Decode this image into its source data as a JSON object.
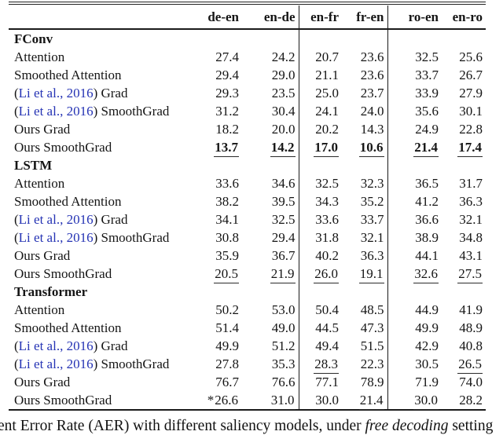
{
  "colors": {
    "citation_blue": "#2533b4",
    "text": "#151515",
    "rule": "#222222",
    "background": "#ffffff"
  },
  "table": {
    "columns": [
      "de-en",
      "en-de",
      "en-fr",
      "fr-en",
      "ro-en",
      "en-ro"
    ],
    "sections": [
      {
        "title": "FConv",
        "rows": [
          {
            "label": [
              {
                "t": "Attention"
              }
            ],
            "cells": [
              {
                "t": "27.4"
              },
              {
                "t": "24.2"
              },
              {
                "t": "20.7"
              },
              {
                "t": "23.6"
              },
              {
                "t": "32.5"
              },
              {
                "t": "25.6"
              }
            ]
          },
          {
            "label": [
              {
                "t": "Smoothed Attention"
              }
            ],
            "cells": [
              {
                "t": "29.4"
              },
              {
                "t": "29.0"
              },
              {
                "t": "21.1"
              },
              {
                "t": "23.6"
              },
              {
                "t": "33.7"
              },
              {
                "t": "26.7"
              }
            ]
          },
          {
            "label": [
              {
                "t": "("
              },
              {
                "t": "Li et al., 2016",
                "cite": true
              },
              {
                "t": ") Grad"
              }
            ],
            "cells": [
              {
                "t": "29.3"
              },
              {
                "t": "23.5"
              },
              {
                "t": "25.0"
              },
              {
                "t": "23.7"
              },
              {
                "t": "33.9"
              },
              {
                "t": "27.9"
              }
            ]
          },
          {
            "label": [
              {
                "t": "("
              },
              {
                "t": "Li et al., 2016",
                "cite": true
              },
              {
                "t": ") SmoothGrad"
              }
            ],
            "cells": [
              {
                "t": "31.2"
              },
              {
                "t": "30.4"
              },
              {
                "t": "24.1"
              },
              {
                "t": "24.0"
              },
              {
                "t": "35.6"
              },
              {
                "t": "30.1"
              }
            ]
          },
          {
            "label": [
              {
                "t": "Ours Grad"
              }
            ],
            "cells": [
              {
                "t": "18.2"
              },
              {
                "t": "20.0"
              },
              {
                "t": "20.2"
              },
              {
                "t": "14.3"
              },
              {
                "t": "24.9"
              },
              {
                "t": "22.8"
              }
            ]
          },
          {
            "label": [
              {
                "t": "Ours SmoothGrad"
              }
            ],
            "cells": [
              {
                "t": "13.7",
                "u": true,
                "b": true
              },
              {
                "t": "14.2",
                "u": true,
                "b": true
              },
              {
                "t": "17.0",
                "u": true,
                "b": true
              },
              {
                "t": "10.6",
                "u": true,
                "b": true
              },
              {
                "t": "21.4",
                "u": true,
                "b": true
              },
              {
                "t": "17.4",
                "u": true,
                "b": true
              }
            ]
          }
        ]
      },
      {
        "title": "LSTM",
        "rows": [
          {
            "label": [
              {
                "t": "Attention"
              }
            ],
            "cells": [
              {
                "t": "33.6"
              },
              {
                "t": "34.6"
              },
              {
                "t": "32.5"
              },
              {
                "t": "32.3"
              },
              {
                "t": "36.5"
              },
              {
                "t": "31.7"
              }
            ]
          },
          {
            "label": [
              {
                "t": "Smoothed Attention"
              }
            ],
            "cells": [
              {
                "t": "38.2"
              },
              {
                "t": "39.5"
              },
              {
                "t": "34.3"
              },
              {
                "t": "35.2"
              },
              {
                "t": "41.2"
              },
              {
                "t": "36.3"
              }
            ]
          },
          {
            "label": [
              {
                "t": "("
              },
              {
                "t": "Li et al., 2016",
                "cite": true
              },
              {
                "t": ") Grad"
              }
            ],
            "cells": [
              {
                "t": "34.1"
              },
              {
                "t": "32.5"
              },
              {
                "t": "33.6"
              },
              {
                "t": "33.7"
              },
              {
                "t": "36.6"
              },
              {
                "t": "32.1"
              }
            ]
          },
          {
            "label": [
              {
                "t": "("
              },
              {
                "t": "Li et al., 2016",
                "cite": true
              },
              {
                "t": ") SmoothGrad"
              }
            ],
            "cells": [
              {
                "t": "30.8"
              },
              {
                "t": "29.4"
              },
              {
                "t": "31.8"
              },
              {
                "t": "32.1"
              },
              {
                "t": "38.9"
              },
              {
                "t": "34.8"
              }
            ]
          },
          {
            "label": [
              {
                "t": "Ours Grad"
              }
            ],
            "cells": [
              {
                "t": "35.9"
              },
              {
                "t": "36.7"
              },
              {
                "t": "40.2"
              },
              {
                "t": "36.3"
              },
              {
                "t": "44.1"
              },
              {
                "t": "43.1"
              }
            ]
          },
          {
            "label": [
              {
                "t": "Ours SmoothGrad"
              }
            ],
            "cells": [
              {
                "t": "20.5",
                "u": true
              },
              {
                "t": "21.9",
                "u": true
              },
              {
                "t": "26.0",
                "u": true
              },
              {
                "t": "19.1",
                "u": true
              },
              {
                "t": "32.6",
                "u": true
              },
              {
                "t": "27.5",
                "u": true
              }
            ]
          }
        ]
      },
      {
        "title": "Transformer",
        "rows": [
          {
            "label": [
              {
                "t": "Attention"
              }
            ],
            "cells": [
              {
                "t": "50.2"
              },
              {
                "t": "53.0"
              },
              {
                "t": "50.4"
              },
              {
                "t": "48.5"
              },
              {
                "t": "44.9"
              },
              {
                "t": "41.9"
              }
            ]
          },
          {
            "label": [
              {
                "t": "Smoothed Attention"
              }
            ],
            "cells": [
              {
                "t": "51.4"
              },
              {
                "t": "49.0"
              },
              {
                "t": "44.5"
              },
              {
                "t": "47.3"
              },
              {
                "t": "49.9"
              },
              {
                "t": "48.9"
              }
            ]
          },
          {
            "label": [
              {
                "t": "("
              },
              {
                "t": "Li et al., 2016",
                "cite": true
              },
              {
                "t": ") Grad"
              }
            ],
            "cells": [
              {
                "t": "49.9"
              },
              {
                "t": "51.2"
              },
              {
                "t": "49.4"
              },
              {
                "t": "51.5"
              },
              {
                "t": "42.9"
              },
              {
                "t": "40.8"
              }
            ]
          },
          {
            "label": [
              {
                "t": "("
              },
              {
                "t": "Li et al., 2016",
                "cite": true
              },
              {
                "t": ") SmoothGrad"
              }
            ],
            "cells": [
              {
                "t": "27.8"
              },
              {
                "t": "35.3"
              },
              {
                "t": "28.3",
                "u": true
              },
              {
                "t": "22.3"
              },
              {
                "t": "30.5"
              },
              {
                "t": "26.5",
                "u": true
              }
            ]
          },
          {
            "label": [
              {
                "t": "Ours Grad"
              }
            ],
            "cells": [
              {
                "t": "76.7"
              },
              {
                "t": "76.6"
              },
              {
                "t": "77.1"
              },
              {
                "t": "78.9"
              },
              {
                "t": "71.9"
              },
              {
                "t": "74.0"
              }
            ]
          },
          {
            "label": [
              {
                "t": "Ours SmoothGrad"
              }
            ],
            "cells": [
              {
                "t": "26.6",
                "u": true,
                "star": true
              },
              {
                "t": "31.0",
                "u": true
              },
              {
                "t": "30.0"
              },
              {
                "t": "21.4",
                "u": true
              },
              {
                "t": "30.0",
                "u": true
              },
              {
                "t": "28.2"
              }
            ]
          }
        ]
      }
    ]
  },
  "caption": {
    "segments": [
      {
        "t": "ent Error Rate (AER) with different saliency models, under "
      },
      {
        "t": "free decoding",
        "i": true
      },
      {
        "t": " setting"
      }
    ]
  }
}
